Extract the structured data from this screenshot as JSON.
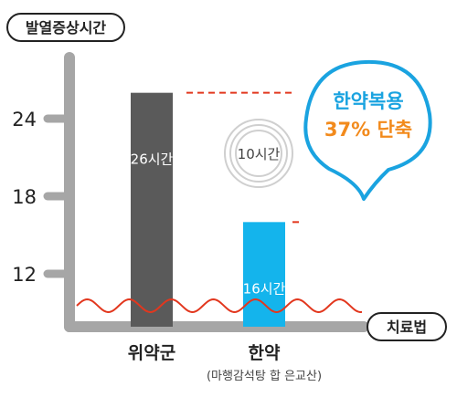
{
  "chart_data": {
    "type": "bar",
    "ylabel": "발열증상시간",
    "xlabel": "치료법",
    "categories": [
      "위약군",
      "한약"
    ],
    "category_sublabels": [
      "",
      "(마행감석탕 합 은교산)"
    ],
    "values": [
      26,
      16
    ],
    "value_labels": [
      "26시간",
      "16시간"
    ],
    "bar_colors": [
      "#5a5a5a",
      "#14b4ec"
    ],
    "yticks": [
      12,
      18,
      24
    ],
    "ylim": [
      10,
      28
    ],
    "axis_break": true,
    "difference_label": "10시간",
    "callout": {
      "line1": "한약복용",
      "line2": "37% 단축",
      "line1_color": "#1aa3e0",
      "line2_color": "#f28a1c",
      "border_color": "#1aa3e0"
    },
    "grid": false,
    "legend": "none"
  }
}
